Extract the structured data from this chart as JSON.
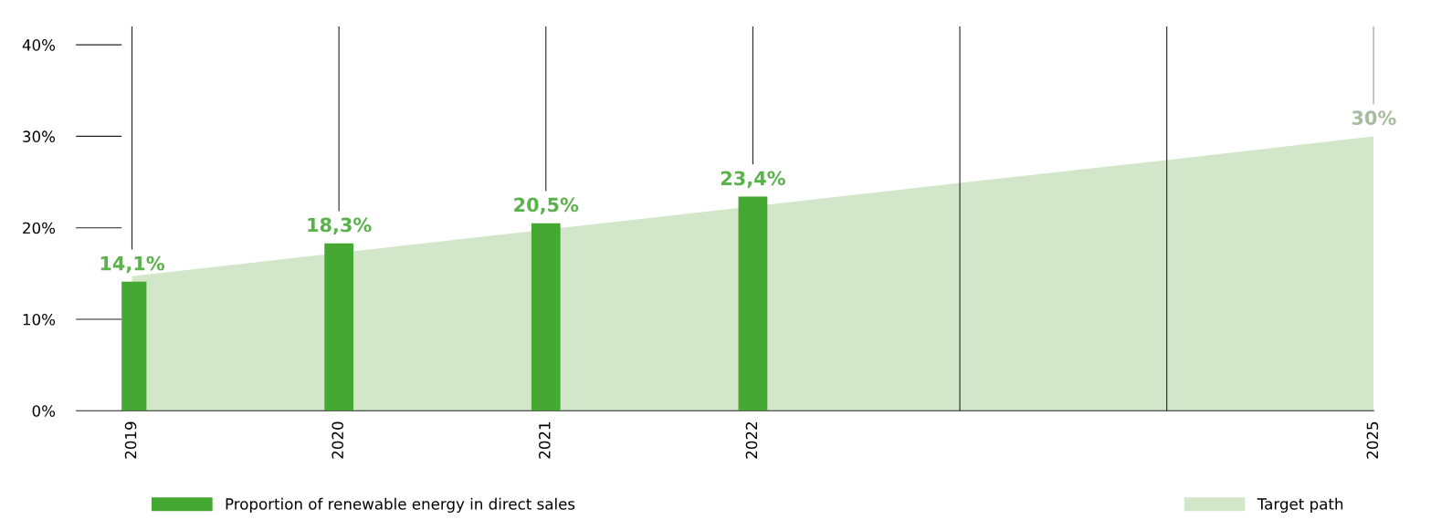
{
  "chart_data": {
    "type": "bar",
    "categories": [
      "2019",
      "2020",
      "2021",
      "2022",
      null,
      null,
      "2025"
    ],
    "series": [
      {
        "name": "Target path",
        "type": "area",
        "color": "#d2e6c9",
        "values": [
          14.7,
          null,
          null,
          null,
          24.9,
          27.4,
          30
        ],
        "value_labels": [
          null,
          null,
          null,
          null,
          null,
          null,
          "30%"
        ]
      },
      {
        "name": "Proportion of renewable energy in direct sales",
        "color": "#44a833",
        "values": [
          14.1,
          18.3,
          20.5,
          23.4,
          null,
          null,
          null
        ],
        "value_labels": [
          "14,1%",
          "18,3%",
          "20,5%",
          "23,4%",
          null,
          null,
          null
        ]
      }
    ],
    "ylim": [
      0,
      42
    ],
    "yticks": [
      {
        "value": 0,
        "label": "0%"
      },
      {
        "value": 10,
        "label": "10%"
      },
      {
        "value": 20,
        "label": "20%"
      },
      {
        "value": 30,
        "label": "30%"
      },
      {
        "value": 40,
        "label": "40%"
      }
    ],
    "grid": "x",
    "legend": "bottom"
  }
}
